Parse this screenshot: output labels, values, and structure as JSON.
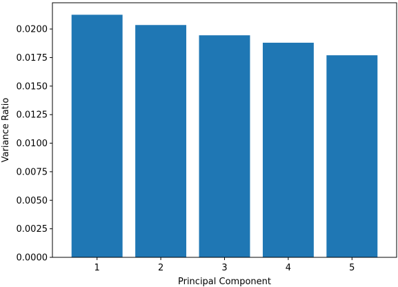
{
  "chart_data": {
    "type": "bar",
    "title": "",
    "xlabel": "Principal Component",
    "ylabel": "Variance Ratio",
    "categories": [
      "1",
      "2",
      "3",
      "4",
      "5"
    ],
    "values": [
      0.02125,
      0.02035,
      0.01945,
      0.0188,
      0.0177
    ],
    "ylim": [
      0,
      0.0223
    ],
    "yticks": [
      0.0,
      0.0025,
      0.005,
      0.0075,
      0.01,
      0.0125,
      0.015,
      0.0175,
      0.02
    ],
    "ytick_labels": [
      "0.0000",
      "0.0025",
      "0.0050",
      "0.0075",
      "0.0100",
      "0.0125",
      "0.0150",
      "0.0175",
      "0.0200"
    ],
    "grid": false,
    "legend": "none",
    "bar_color": "#1f77b4"
  }
}
